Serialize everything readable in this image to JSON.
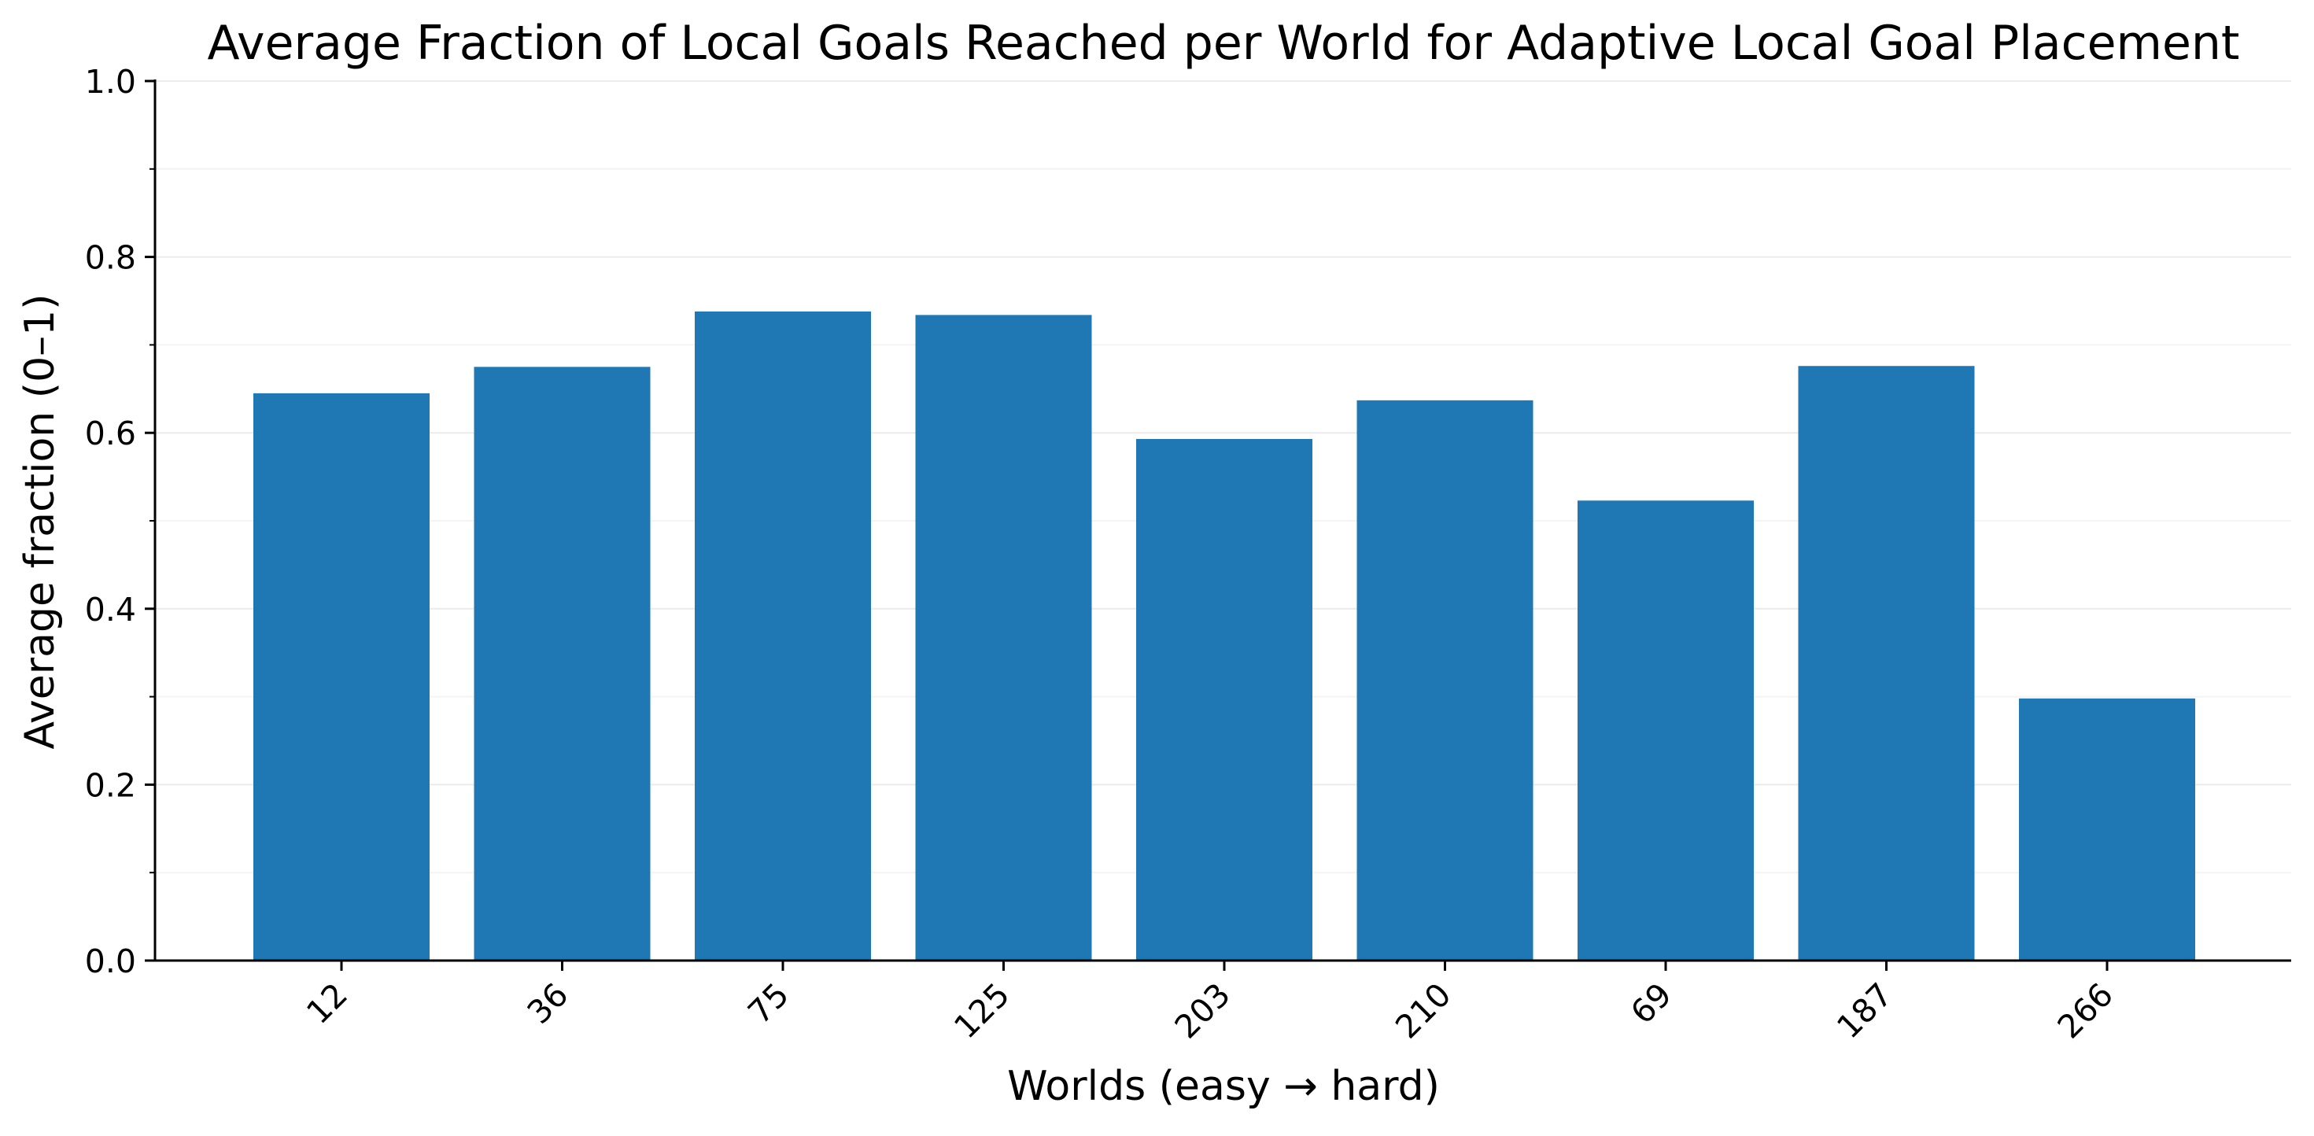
{
  "chart_data": {
    "type": "bar",
    "title": "Average Fraction of Local Goals Reached per World for Adaptive Local Goal Placement",
    "xlabel": "Worlds (easy → hard)",
    "ylabel": "Average fraction (0–1)",
    "categories": [
      "12",
      "36",
      "75",
      "125",
      "203",
      "210",
      "69",
      "187",
      "266"
    ],
    "values": [
      0.645,
      0.675,
      0.738,
      0.734,
      0.593,
      0.637,
      0.523,
      0.676,
      0.298
    ],
    "ylim": [
      0,
      1
    ],
    "yticks": [
      "0.0",
      "0.2",
      "0.4",
      "0.6",
      "0.8",
      "1.0"
    ],
    "ytick_values": [
      0,
      0.2,
      0.4,
      0.6,
      0.8,
      1.0
    ],
    "y_minor_values": [
      0.1,
      0.3,
      0.5,
      0.7,
      0.9
    ],
    "grid": true,
    "legend": false,
    "colors": {
      "bar": "#1f77b4",
      "grid": "#ebebeb",
      "axis": "#000000"
    }
  }
}
